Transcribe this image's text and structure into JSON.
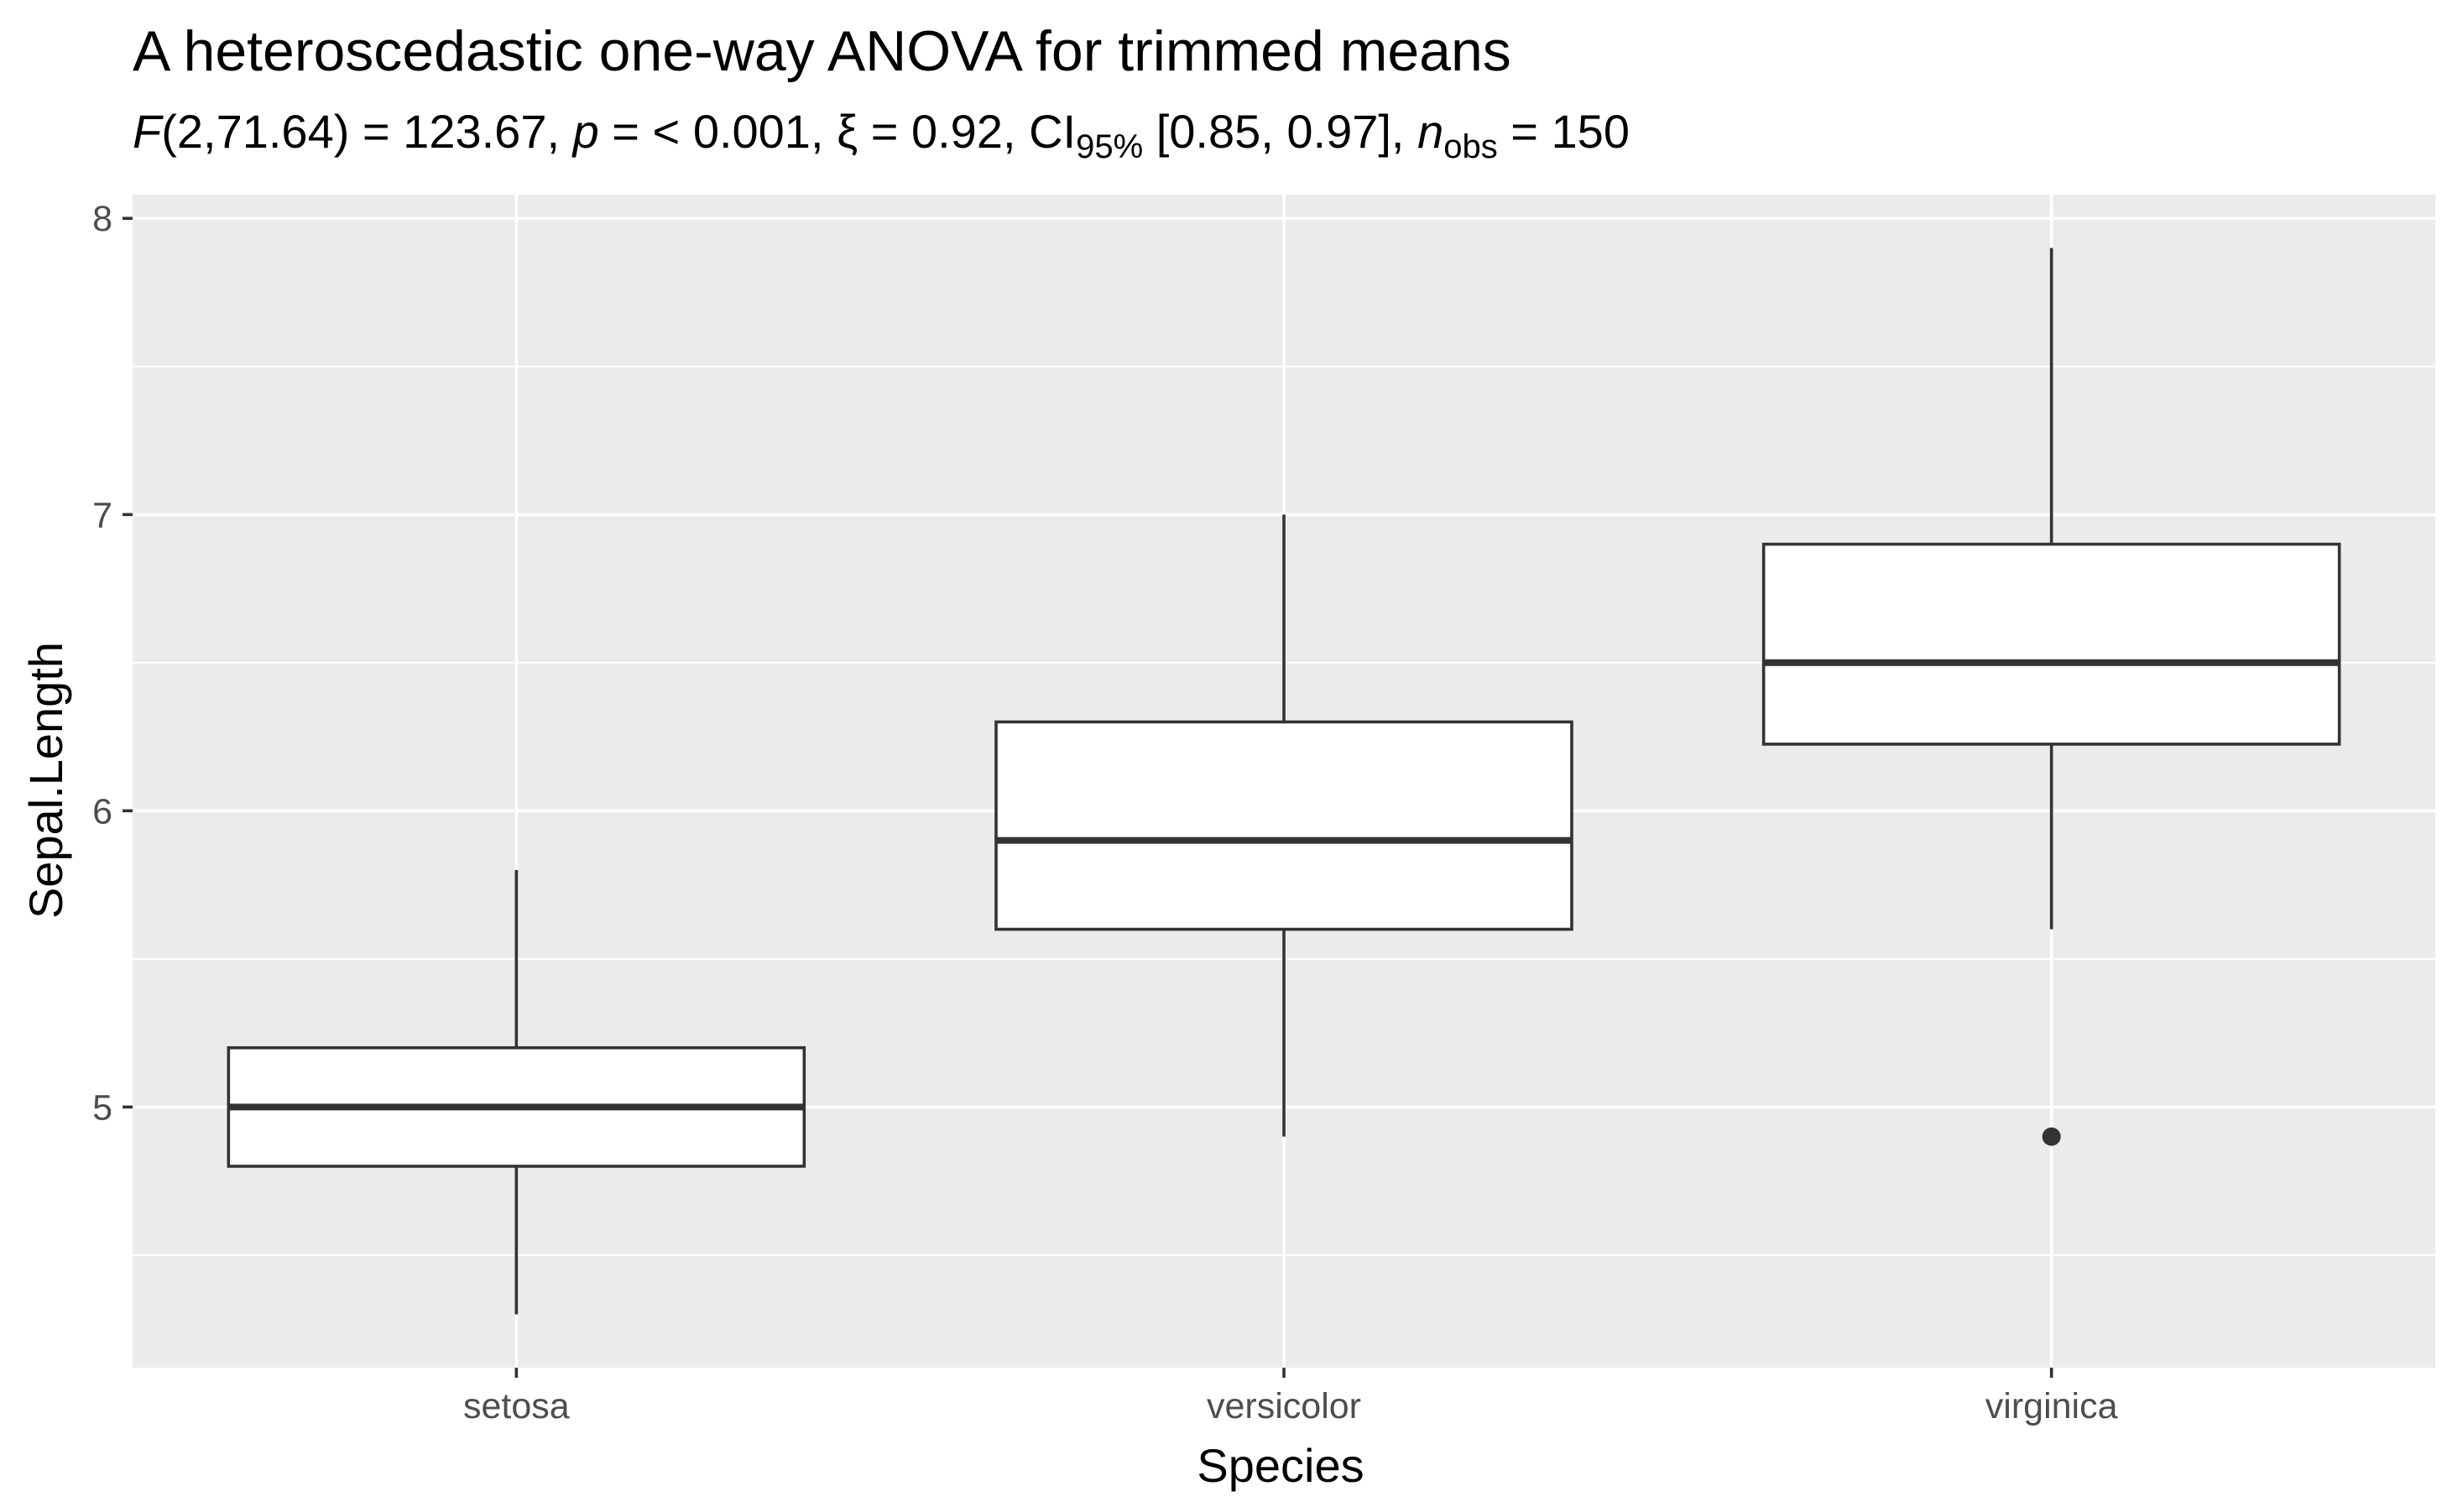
{
  "chart_data": {
    "type": "boxplot",
    "title": "A heteroscedastic one-way ANOVA for trimmed means",
    "subtitle": {
      "F": "F",
      "f_args": "(2,71.64) = 123.67, ",
      "p": "p",
      "p_text": " = < 0.001, ",
      "xi_text": "ξ = 0.92, CI",
      "ci_sub": "95%",
      "ci_text": " [0.85, 0.97], ",
      "n": "n",
      "n_sub": "obs",
      "n_text": " = 150"
    },
    "xlabel": "Species",
    "ylabel": "Sepal.Length",
    "categories": [
      "setosa",
      "versicolor",
      "virginica"
    ],
    "ylim": [
      4.12,
      8.08
    ],
    "yticks": [
      5,
      6,
      7,
      8
    ],
    "minor_yticks": [
      4.5,
      5.5,
      6.5,
      7.5
    ],
    "grid": true,
    "boxes": [
      {
        "category": "setosa",
        "whisker_low": 4.3,
        "q1": 4.8,
        "median": 5.0,
        "q3": 5.2,
        "whisker_high": 5.8,
        "outliers": []
      },
      {
        "category": "versicolor",
        "whisker_low": 4.9,
        "q1": 5.6,
        "median": 5.9,
        "q3": 6.3,
        "whisker_high": 7.0,
        "outliers": []
      },
      {
        "category": "virginica",
        "whisker_low": 5.6,
        "q1": 6.225,
        "median": 6.5,
        "q3": 6.9,
        "whisker_high": 7.9,
        "outliers": [
          4.9
        ]
      }
    ],
    "colors": {
      "panel": "#ebebeb",
      "grid": "#ffffff",
      "box_fill": "#ffffff",
      "box_line": "#333333"
    }
  }
}
